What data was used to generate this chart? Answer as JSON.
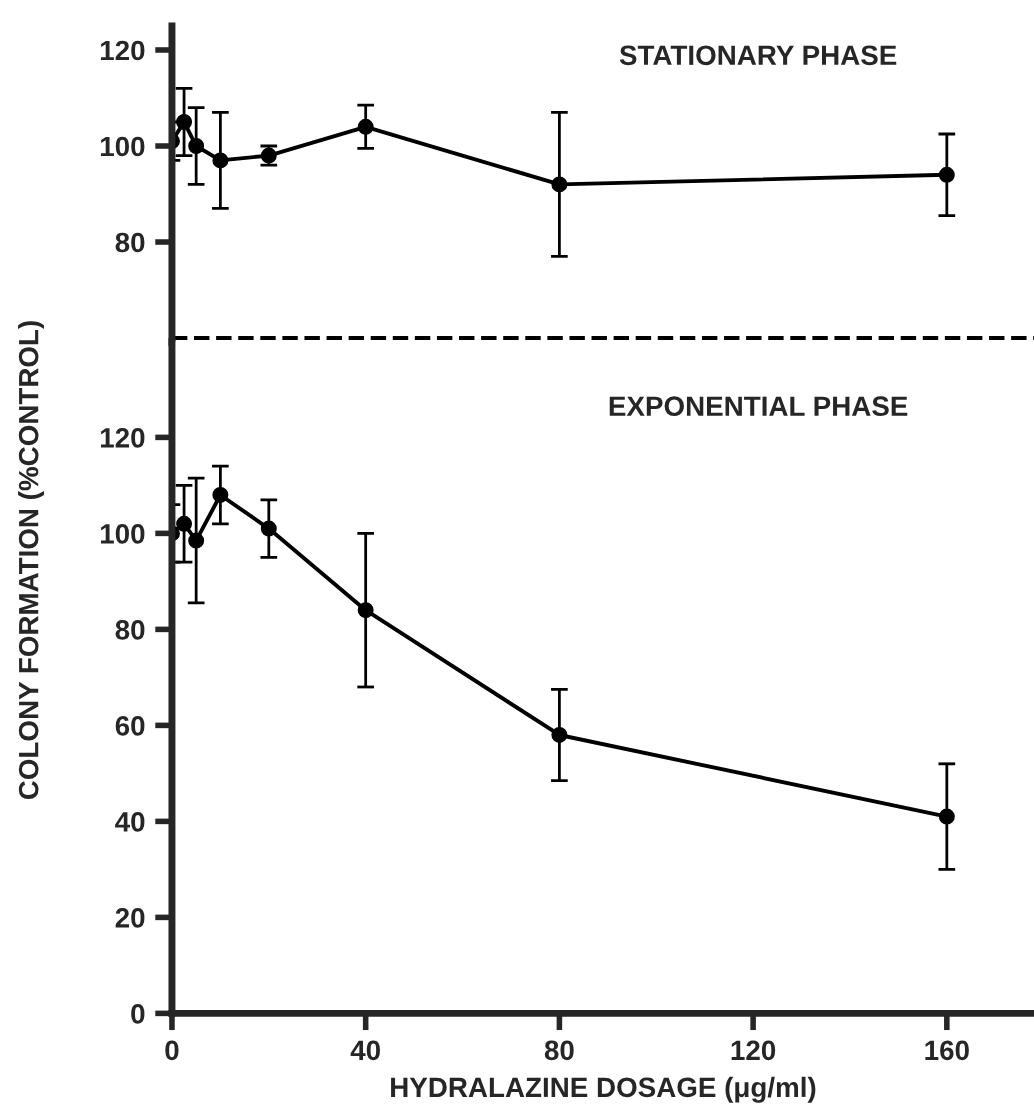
{
  "chart_data": [
    {
      "type": "line",
      "annotations": [
        "STATIONARY PHASE"
      ],
      "xlim": [
        0,
        178
      ],
      "ylim": [
        59,
        125
      ],
      "yticks": [
        80,
        100,
        120
      ],
      "tick_labels": "y",
      "grid": false,
      "marker": "circle",
      "line_style": "solid",
      "ref_lines": [
        {
          "axis": "y",
          "value": 60,
          "color": "#000000",
          "line_style": "dashed"
        }
      ],
      "series": [
        {
          "color": "#000000",
          "x": [
            0,
            2.5,
            5,
            10,
            20,
            40,
            80,
            160
          ],
          "values": [
            101,
            105,
            100,
            97,
            98,
            104,
            92,
            94
          ],
          "errors": [
            4,
            7,
            8,
            10,
            2,
            4.5,
            15,
            8.5
          ]
        }
      ]
    },
    {
      "type": "line",
      "annotations": [
        "EXPONENTIAL PHASE"
      ],
      "xlabel": "HYDRALAZINE DOSAGE (μg/ml)",
      "ylabel": "COLONY FORMATION (%CONTROL)",
      "xlim": [
        0,
        178
      ],
      "xticks": [
        0,
        40,
        80,
        120,
        160
      ],
      "ylim": [
        0,
        140
      ],
      "yticks": [
        0,
        20,
        40,
        60,
        80,
        100,
        120
      ],
      "grid": false,
      "marker": "circle",
      "line_style": "solid",
      "series": [
        {
          "color": "#000000",
          "x": [
            0,
            2.5,
            5,
            10,
            20,
            40,
            80,
            160
          ],
          "values": [
            100,
            102,
            98.5,
            108,
            101,
            84,
            58,
            41
          ],
          "errors": [
            6,
            8,
            13,
            6,
            6,
            16,
            9.5,
            11
          ]
        }
      ]
    }
  ]
}
